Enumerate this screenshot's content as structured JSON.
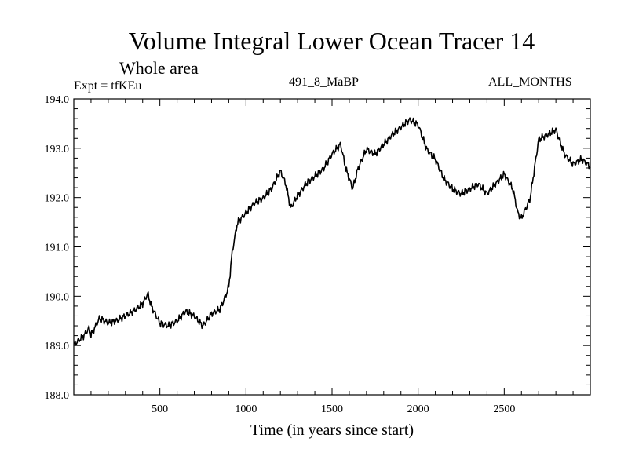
{
  "chart_data": {
    "type": "line",
    "title": "Volume Integral Lower Ocean Tracer 14",
    "subtitle": "Whole area",
    "experiment_label": "Expt = tfKEu",
    "run_label": "491_8_MaBP",
    "period_label": "ALL_MONTHS",
    "xlabel": "Time (in years since start)",
    "ylabel": "",
    "xlim": [
      0,
      3000
    ],
    "ylim": [
      188.0,
      194.0
    ],
    "x_ticks": [
      500,
      1000,
      1500,
      2000,
      2500
    ],
    "x_tick_labels": [
      "500",
      "1000",
      "1500",
      "2000",
      "2500"
    ],
    "y_ticks": [
      188.0,
      189.0,
      190.0,
      191.0,
      192.0,
      193.0,
      194.0
    ],
    "y_tick_labels": [
      "188.0",
      "189.0",
      "190.0",
      "191.0",
      "192.0",
      "193.0",
      "194.0"
    ],
    "grid": false,
    "legend": "none",
    "line_color": "#000000",
    "series": [
      {
        "x": [
          0,
          30,
          60,
          90,
          100,
          150,
          200,
          250,
          300,
          350,
          400,
          430,
          450,
          500,
          550,
          600,
          650,
          700,
          750,
          800,
          850,
          880,
          900,
          920,
          950,
          1000,
          1050,
          1100,
          1150,
          1200,
          1230,
          1260,
          1290,
          1320,
          1350,
          1400,
          1450,
          1500,
          1550,
          1580,
          1620,
          1650,
          1700,
          1750,
          1800,
          1850,
          1900,
          1950,
          2000,
          2030,
          2050,
          2100,
          2150,
          2200,
          2250,
          2300,
          2350,
          2400,
          2450,
          2500,
          2550,
          2580,
          2600,
          2650,
          2700,
          2750,
          2800,
          2850,
          2900,
          2950,
          3000
        ],
        "y": [
          189.0,
          189.1,
          189.2,
          189.35,
          189.2,
          189.55,
          189.45,
          189.5,
          189.6,
          189.7,
          189.85,
          190.05,
          189.8,
          189.45,
          189.4,
          189.5,
          189.7,
          189.6,
          189.4,
          189.65,
          189.75,
          190.0,
          190.2,
          190.9,
          191.5,
          191.7,
          191.9,
          192.0,
          192.2,
          192.55,
          192.3,
          191.8,
          192.0,
          192.15,
          192.3,
          192.45,
          192.6,
          192.9,
          193.1,
          192.6,
          192.2,
          192.6,
          193.0,
          192.9,
          193.1,
          193.3,
          193.45,
          193.6,
          193.5,
          193.2,
          193.0,
          192.8,
          192.4,
          192.2,
          192.1,
          192.2,
          192.3,
          192.1,
          192.3,
          192.5,
          192.2,
          191.7,
          191.6,
          192.0,
          193.2,
          193.3,
          193.4,
          192.9,
          192.7,
          192.8,
          192.65
        ]
      }
    ]
  }
}
